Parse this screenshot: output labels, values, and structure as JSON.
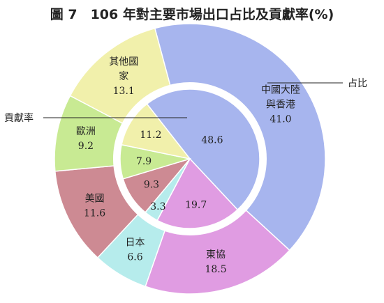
{
  "title": "圖 7　106 年對主要市場出口占比及貢獻率(%)",
  "chart_data": {
    "type": "pie",
    "title": "圖 7　106 年對主要市場出口占比及貢獻率(%)",
    "rings": [
      {
        "name": "占比",
        "ring": "outer",
        "slices": [
          {
            "label_lines": [
              "中國大陸",
              "與香港"
            ],
            "value": 41.0,
            "value_text": "41.0",
            "color": "#a7b5ee"
          },
          {
            "label_lines": [
              "東協"
            ],
            "value": 18.5,
            "value_text": "18.5",
            "color": "#e09ce2"
          },
          {
            "label_lines": [
              "日本"
            ],
            "value": 6.6,
            "value_text": "6.6",
            "color": "#b6ecec"
          },
          {
            "label_lines": [
              "美國"
            ],
            "value": 11.6,
            "value_text": "11.6",
            "color": "#cd8a93"
          },
          {
            "label_lines": [
              "歐洲"
            ],
            "value": 9.2,
            "value_text": "9.2",
            "color": "#c8ea93"
          },
          {
            "label_lines": [
              "其他國",
              "家"
            ],
            "value": 13.1,
            "value_text": "13.1",
            "color": "#f1f0ab"
          }
        ]
      },
      {
        "name": "貢獻率",
        "ring": "inner",
        "slices": [
          {
            "category": "中國大陸與香港",
            "value": 48.6,
            "value_text": "48.6",
            "color": "#a7b5ee"
          },
          {
            "category": "東協",
            "value": 19.7,
            "value_text": "19.7",
            "color": "#e09ce2"
          },
          {
            "category": "日本",
            "value": 3.3,
            "value_text": "3.3",
            "color": "#b6ecec"
          },
          {
            "category": "美國",
            "value": 9.3,
            "value_text": "9.3",
            "color": "#cd8a93"
          },
          {
            "category": "歐洲",
            "value": 7.9,
            "value_text": "7.9",
            "color": "#c8ea93"
          },
          {
            "category": "其他國家",
            "value": 11.2,
            "value_text": "11.2",
            "color": "#f1f0ab"
          }
        ]
      }
    ],
    "annotations": {
      "outer_ring": "占比",
      "inner_pie": "貢獻率"
    }
  }
}
